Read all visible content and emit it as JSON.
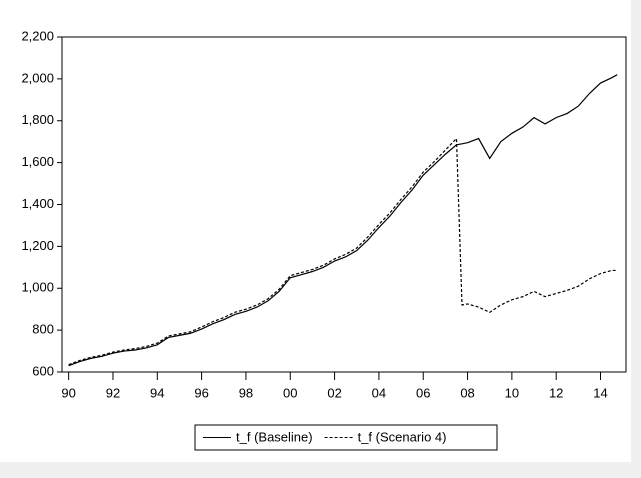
{
  "chart_data": {
    "type": "line",
    "x": [
      1990,
      1990.5,
      1991,
      1991.5,
      1992,
      1992.5,
      1993,
      1993.5,
      1994,
      1994.5,
      1995,
      1995.5,
      1996,
      1996.5,
      1997,
      1997.5,
      1998,
      1998.5,
      1999,
      1999.5,
      2000,
      2000.5,
      2001,
      2001.5,
      2002,
      2002.5,
      2003,
      2003.5,
      2004,
      2004.5,
      2005,
      2005.5,
      2006,
      2006.5,
      2007,
      2007.5,
      2007.75,
      2008,
      2008.5,
      2009,
      2009.5,
      2010,
      2010.5,
      2011,
      2011.5,
      2012,
      2012.5,
      2013,
      2013.5,
      2014,
      2014.5,
      2014.75
    ],
    "series": [
      {
        "name": "t_f (Baseline)",
        "color": "#000000",
        "dash": false,
        "values": [
          630,
          650,
          665,
          675,
          690,
          700,
          705,
          715,
          730,
          765,
          775,
          785,
          805,
          830,
          850,
          875,
          890,
          910,
          940,
          985,
          1050,
          1065,
          1080,
          1100,
          1130,
          1150,
          1180,
          1230,
          1290,
          1345,
          1410,
          1470,
          1540,
          1590,
          1640,
          1685,
          1690,
          1695,
          1715,
          1620,
          1700,
          1740,
          1770,
          1815,
          1785,
          1815,
          1835,
          1870,
          1930,
          1980,
          2005,
          2020
        ]
      },
      {
        "name": "t_f (Scenario 4)",
        "color": "#000000",
        "dash": true,
        "values": [
          635,
          655,
          670,
          680,
          695,
          705,
          712,
          722,
          738,
          772,
          782,
          792,
          815,
          840,
          860,
          885,
          900,
          920,
          950,
          995,
          1060,
          1075,
          1090,
          1110,
          1140,
          1162,
          1192,
          1245,
          1305,
          1360,
          1425,
          1485,
          1555,
          1605,
          1660,
          1715,
          920,
          925,
          910,
          885,
          920,
          945,
          960,
          985,
          960,
          975,
          990,
          1010,
          1045,
          1070,
          1085,
          1085
        ]
      }
    ],
    "xlim": [
      1989.7,
      2015.15
    ],
    "xticks": [
      {
        "value": 1990,
        "label": "90"
      },
      {
        "value": 1992,
        "label": "92"
      },
      {
        "value": 1994,
        "label": "94"
      },
      {
        "value": 1996,
        "label": "96"
      },
      {
        "value": 1998,
        "label": "98"
      },
      {
        "value": 2000,
        "label": "00"
      },
      {
        "value": 2002,
        "label": "02"
      },
      {
        "value": 2004,
        "label": "04"
      },
      {
        "value": 2006,
        "label": "06"
      },
      {
        "value": 2008,
        "label": "08"
      },
      {
        "value": 2010,
        "label": "10"
      },
      {
        "value": 2012,
        "label": "12"
      },
      {
        "value": 2014,
        "label": "14"
      }
    ],
    "ylim": [
      600,
      2200
    ],
    "yticks": [
      {
        "value": 600,
        "label": "600"
      },
      {
        "value": 800,
        "label": "800"
      },
      {
        "value": 1000,
        "label": "1,000"
      },
      {
        "value": 1200,
        "label": "1,200"
      },
      {
        "value": 1400,
        "label": "1,400"
      },
      {
        "value": 1600,
        "label": "1,600"
      },
      {
        "value": 1800,
        "label": "1,800"
      },
      {
        "value": 2000,
        "label": "2,000"
      },
      {
        "value": 2200,
        "label": "2,200"
      }
    ],
    "grid": false
  }
}
